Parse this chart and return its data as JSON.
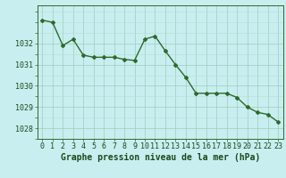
{
  "x": [
    0,
    1,
    2,
    3,
    4,
    5,
    6,
    7,
    8,
    9,
    10,
    11,
    12,
    13,
    14,
    15,
    16,
    17,
    18,
    19,
    20,
    21,
    22,
    23
  ],
  "y": [
    1033.1,
    1033.0,
    1031.9,
    1032.2,
    1031.45,
    1031.35,
    1031.35,
    1031.35,
    1031.25,
    1031.2,
    1032.2,
    1032.35,
    1031.65,
    1031.0,
    1030.4,
    1029.65,
    1029.65,
    1029.65,
    1029.65,
    1029.45,
    1029.0,
    1028.75,
    1028.65,
    1028.3
  ],
  "line_color": "#2d6a2d",
  "marker": "D",
  "marker_size": 2.0,
  "bg_color": "#c8eef0",
  "grid_color_major": "#a0ccbb",
  "grid_color_minor": "#b8ddd0",
  "ylabel_ticks": [
    1028,
    1029,
    1030,
    1031,
    1032
  ],
  "xlabel": "Graphe pression niveau de la mer (hPa)",
  "ylim": [
    1027.5,
    1033.8
  ],
  "xlim": [
    -0.5,
    23.5
  ],
  "xlabel_fontsize": 7,
  "tick_fontsize": 6,
  "line_width": 1.0,
  "text_color": "#1a4a1a"
}
